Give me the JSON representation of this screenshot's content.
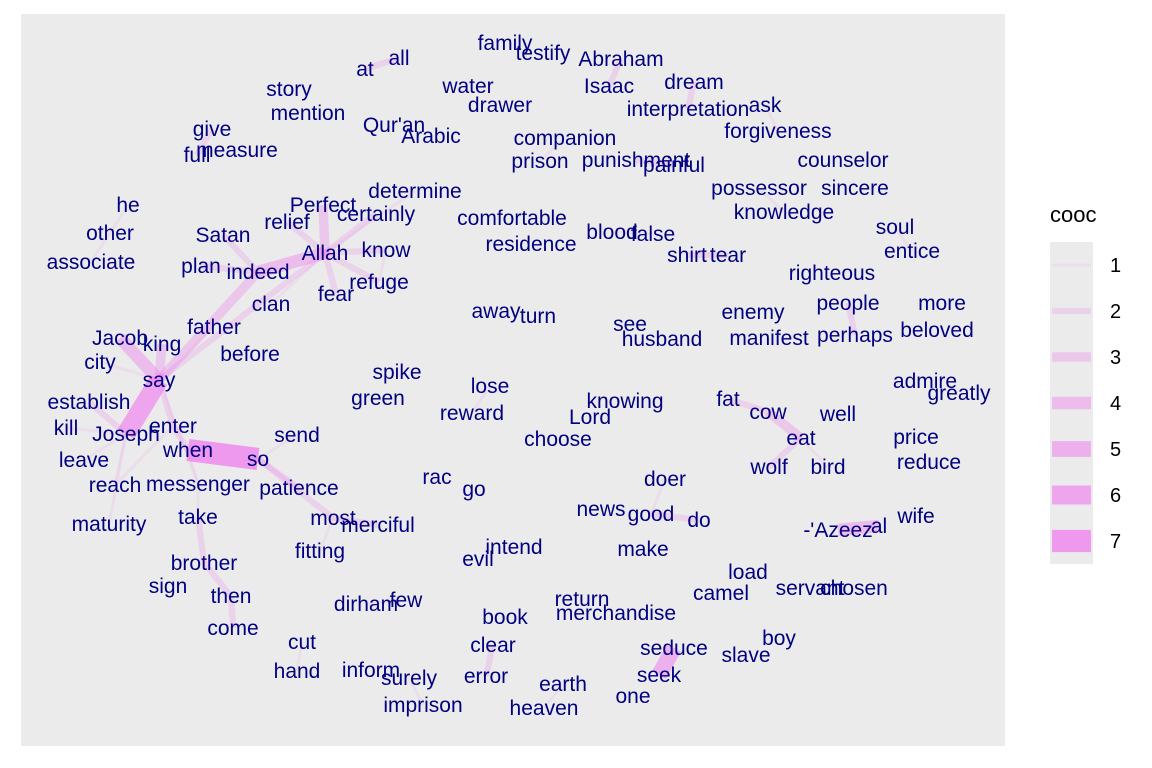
{
  "chart_data": {
    "type": "network",
    "title": "",
    "xlabel": "",
    "ylabel": "",
    "grid": false,
    "legend_position": "right",
    "colors": {
      "panel": "#ebebeb",
      "word": "#000080",
      "edge": "#ee82ee",
      "legend_key_bg": "#ebebeb"
    },
    "legend": {
      "title": "cooc",
      "levels": [
        1,
        2,
        3,
        4,
        5,
        6,
        7
      ]
    },
    "words": [
      [
        "family",
        505,
        50
      ],
      [
        "testify",
        543,
        60
      ],
      [
        "Abraham",
        621,
        66
      ],
      [
        "at",
        365,
        76
      ],
      [
        "all",
        399,
        65
      ],
      [
        "water",
        468,
        93
      ],
      [
        "Isaac",
        609,
        93
      ],
      [
        "dream",
        694,
        89
      ],
      [
        "story",
        289,
        96
      ],
      [
        "drawer",
        500,
        112
      ],
      [
        "interpretation",
        688,
        116
      ],
      [
        "ask",
        765,
        112
      ],
      [
        "mention",
        308,
        120
      ],
      [
        "Qur'an",
        394,
        132
      ],
      [
        "Arabic",
        431,
        143
      ],
      [
        "companion",
        565,
        145
      ],
      [
        "forgiveness",
        778,
        138
      ],
      [
        "give",
        212,
        136
      ],
      [
        "full",
        197,
        162
      ],
      [
        "measure",
        237,
        157
      ],
      [
        "prison",
        540,
        168
      ],
      [
        "punishment",
        636,
        167
      ],
      [
        "painful",
        674,
        172
      ],
      [
        "counselor",
        843,
        167
      ],
      [
        "possessor",
        759,
        195
      ],
      [
        "sincere",
        855,
        195
      ],
      [
        "determine",
        415,
        198
      ],
      [
        "Perfect",
        323,
        212
      ],
      [
        "certainly",
        376,
        221
      ],
      [
        "relief",
        287,
        229
      ],
      [
        "comfortable",
        512,
        225
      ],
      [
        "knowledge",
        784,
        219
      ],
      [
        "he",
        128,
        212
      ],
      [
        "soul",
        895,
        234
      ],
      [
        "Satan",
        223,
        242
      ],
      [
        "blood",
        612,
        239
      ],
      [
        "false",
        653,
        241
      ],
      [
        "other",
        110,
        240
      ],
      [
        "residence",
        531,
        251
      ],
      [
        "Allah",
        325,
        260
      ],
      [
        "know",
        386,
        257
      ],
      [
        "entice",
        912,
        258
      ],
      [
        "shirt",
        687,
        262
      ],
      [
        "tear",
        728,
        262
      ],
      [
        "associate",
        91,
        269
      ],
      [
        "plan",
        201,
        273
      ],
      [
        "indeed",
        258,
        279
      ],
      [
        "righteous",
        832,
        280
      ],
      [
        "refuge",
        379,
        289
      ],
      [
        "fear",
        336,
        301
      ],
      [
        "clan",
        271,
        311
      ],
      [
        "people",
        848,
        310
      ],
      [
        "more",
        942,
        310
      ],
      [
        "away",
        496,
        318
      ],
      [
        "turn",
        538,
        323
      ],
      [
        "enemy",
        753,
        319
      ],
      [
        "see",
        630,
        331
      ],
      [
        "father",
        214,
        334
      ],
      [
        "beloved",
        937,
        337
      ],
      [
        "Jacob",
        120,
        345
      ],
      [
        "husband",
        662,
        346
      ],
      [
        "manifest",
        769,
        345
      ],
      [
        "perhaps",
        855,
        342
      ],
      [
        "king",
        162,
        351
      ],
      [
        "before",
        250,
        361
      ],
      [
        "city",
        100,
        369
      ],
      [
        "spike",
        397,
        379
      ],
      [
        "say",
        159,
        387
      ],
      [
        "admire",
        925,
        388
      ],
      [
        "lose",
        490,
        393
      ],
      [
        "greatly",
        959,
        400
      ],
      [
        "green",
        378,
        405
      ],
      [
        "establish",
        89,
        409
      ],
      [
        "fat",
        728,
        406
      ],
      [
        "knowing",
        625,
        408
      ],
      [
        "reward",
        472,
        420
      ],
      [
        "cow",
        768,
        419
      ],
      [
        "well",
        838,
        421
      ],
      [
        "Lord",
        590,
        424
      ],
      [
        "enter",
        173,
        433
      ],
      [
        "kill",
        66,
        435
      ],
      [
        "Joseph",
        126,
        441
      ],
      [
        "send",
        297,
        442
      ],
      [
        "eat",
        801,
        445
      ],
      [
        "price",
        916,
        444
      ],
      [
        "choose",
        558,
        446
      ],
      [
        "when",
        188,
        457
      ],
      [
        "so",
        258,
        466
      ],
      [
        "leave",
        84,
        467
      ],
      [
        "reduce",
        929,
        469
      ],
      [
        "wolf",
        769,
        474
      ],
      [
        "bird",
        828,
        474
      ],
      [
        "rac",
        437,
        484
      ],
      [
        "doer",
        665,
        486
      ],
      [
        "reach",
        115,
        492
      ],
      [
        "messenger",
        198,
        491
      ],
      [
        "go",
        474,
        496
      ],
      [
        "patience",
        299,
        495
      ],
      [
        "news",
        601,
        516
      ],
      [
        "good",
        651,
        521
      ],
      [
        "take",
        198,
        524
      ],
      [
        "do",
        699,
        527
      ],
      [
        "wife",
        916,
        523
      ],
      [
        "most",
        333,
        525
      ],
      [
        "maturity",
        109,
        531
      ],
      [
        "merciful",
        378,
        532
      ],
      [
        "-'Azeez",
        838,
        537
      ],
      [
        "al",
        879,
        533
      ],
      [
        "intend",
        514,
        554
      ],
      [
        "make",
        643,
        556
      ],
      [
        "fitting",
        320,
        558
      ],
      [
        "evil",
        478,
        566
      ],
      [
        "brother",
        204,
        570
      ],
      [
        "load",
        748,
        579
      ],
      [
        "sign",
        168,
        593
      ],
      [
        "camel",
        721,
        600
      ],
      [
        "servant",
        810,
        595
      ],
      [
        "chosen",
        854,
        595
      ],
      [
        "then",
        231,
        603
      ],
      [
        "dirham",
        366,
        611
      ],
      [
        "few",
        406,
        607
      ],
      [
        "return",
        582,
        606
      ],
      [
        "merchandise",
        616,
        620
      ],
      [
        "book",
        505,
        624
      ],
      [
        "come",
        233,
        635
      ],
      [
        "cut",
        302,
        649
      ],
      [
        "boy",
        779,
        645
      ],
      [
        "clear",
        493,
        652
      ],
      [
        "seduce",
        674,
        655
      ],
      [
        "slave",
        746,
        662
      ],
      [
        "hand",
        297,
        678
      ],
      [
        "inform",
        371,
        677
      ],
      [
        "seek",
        659,
        682
      ],
      [
        "error",
        486,
        683
      ],
      [
        "surely",
        409,
        685
      ],
      [
        "earth",
        563,
        691
      ],
      [
        "one",
        633,
        703
      ],
      [
        "imprison",
        423,
        712
      ],
      [
        "heaven",
        544,
        715
      ]
    ],
    "edges": [
      [
        "say",
        "Joseph",
        6
      ],
      [
        "say",
        "Jacob",
        4
      ],
      [
        "say",
        "king",
        3
      ],
      [
        "say",
        "enter",
        2
      ],
      [
        "say",
        "city",
        1
      ],
      [
        "say",
        "father",
        1
      ],
      [
        "Joseph",
        "establish",
        2
      ],
      [
        "Joseph",
        "leave",
        1
      ],
      [
        "Joseph",
        "kill",
        1
      ],
      [
        "Joseph",
        "reach",
        1
      ],
      [
        "Joseph",
        "maturity",
        1
      ],
      [
        "when",
        "so",
        7
      ],
      [
        "when",
        "enter",
        2
      ],
      [
        "so",
        "send",
        1
      ],
      [
        "when",
        "messenger",
        1
      ],
      [
        "so",
        "patience",
        2
      ],
      [
        "so",
        "most",
        2
      ],
      [
        "most",
        "merciful",
        2
      ],
      [
        "most",
        "fitting",
        1
      ],
      [
        "say",
        "messenger",
        1
      ],
      [
        "messenger",
        "take",
        1
      ],
      [
        "take",
        "brother",
        2
      ],
      [
        "brother",
        "then",
        2
      ],
      [
        "then",
        "come",
        2
      ],
      [
        "Allah",
        "indeed",
        4
      ],
      [
        "indeed",
        "say",
        3
      ],
      [
        "Allah",
        "Perfect",
        3
      ],
      [
        "Allah",
        "certainly",
        2
      ],
      [
        "Allah",
        "determine",
        1
      ],
      [
        "Allah",
        "relief",
        2
      ],
      [
        "Allah",
        "know",
        2
      ],
      [
        "Allah",
        "refuge",
        2
      ],
      [
        "Allah",
        "fear",
        2
      ],
      [
        "Allah",
        "clan",
        1
      ],
      [
        "Satan",
        "indeed",
        2
      ],
      [
        "plan",
        "indeed",
        2
      ],
      [
        "give",
        "full",
        2
      ],
      [
        "he",
        "other",
        1
      ],
      [
        "other",
        "associate",
        1
      ],
      [
        "at",
        "all",
        2
      ],
      [
        "Abraham",
        "Isaac",
        2
      ],
      [
        "dream",
        "interpretation",
        2
      ],
      [
        "ask",
        "forgiveness",
        1
      ],
      [
        "companion",
        "prison",
        1
      ],
      [
        "punishment",
        "painful",
        2
      ],
      [
        "possessor",
        "knowledge",
        1
      ],
      [
        "blood",
        "false",
        1
      ],
      [
        "shirt",
        "tear",
        2
      ],
      [
        "soul",
        "entice",
        1
      ],
      [
        "people",
        "perhaps",
        2
      ],
      [
        "fat",
        "cow",
        2
      ],
      [
        "cow",
        "eat",
        3
      ],
      [
        "eat",
        "wolf",
        2
      ],
      [
        "eat",
        "bird",
        1
      ],
      [
        "-'Azeez",
        "al",
        4
      ],
      [
        "good",
        "do",
        2
      ],
      [
        "good",
        "doer",
        1
      ],
      [
        "seduce",
        "seek",
        5
      ],
      [
        "clear",
        "error",
        2
      ],
      [
        "earth",
        "heaven",
        1
      ],
      [
        "surely",
        "imprison",
        1
      ],
      [
        "cut",
        "hand",
        1
      ],
      [
        "dirham",
        "few",
        1
      ],
      [
        "lose",
        "reward",
        1
      ],
      [
        "know",
        "refuge",
        1
      ],
      [
        "Allah",
        "say",
        2
      ],
      [
        "enter",
        "reach",
        1
      ]
    ]
  }
}
